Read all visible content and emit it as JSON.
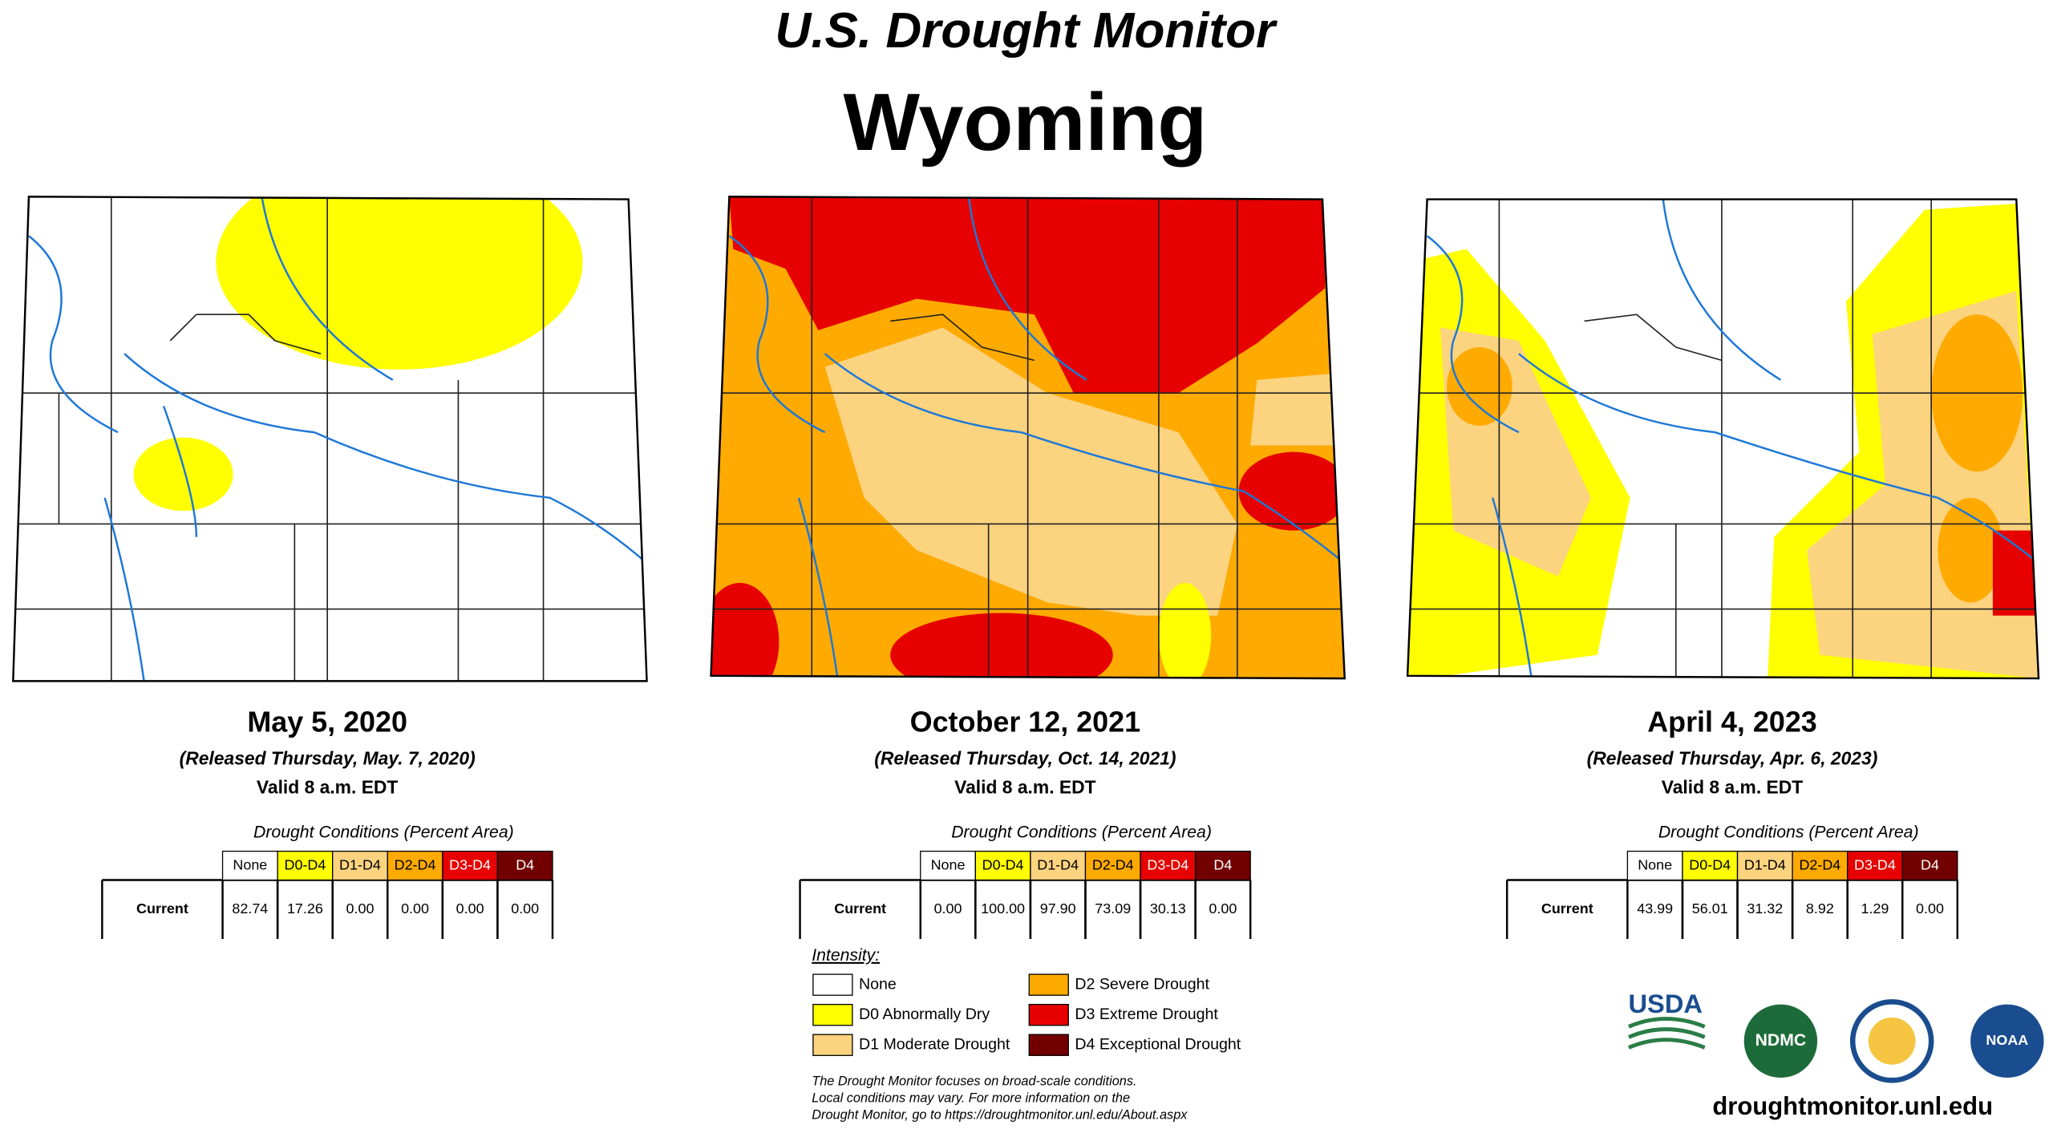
{
  "title": "U.S. Drought Monitor",
  "state": "Wyoming",
  "table": {
    "title": "Drought Conditions (Percent Area)",
    "row_label": "Current",
    "columns": [
      {
        "label": "None",
        "color": "#ffffff",
        "text_color": "#000000"
      },
      {
        "label": "D0-D4",
        "color": "#ffff00",
        "text_color": "#000000"
      },
      {
        "label": "D1-D4",
        "color": "#fcd37f",
        "text_color": "#000000"
      },
      {
        "label": "D2-D4",
        "color": "#ffaa00",
        "text_color": "#000000"
      },
      {
        "label": "D3-D4",
        "color": "#e60000",
        "text_color": "#ffffff"
      },
      {
        "label": "D4",
        "color": "#730000",
        "text_color": "#ffffff"
      }
    ]
  },
  "panels": [
    {
      "date": "May 5, 2020",
      "released": "(Released Thursday, May. 7, 2020)",
      "valid": "Valid 8 a.m. EDT",
      "values": [
        "82.74",
        "17.26",
        "0.00",
        "0.00",
        "0.00",
        "0.00"
      ]
    },
    {
      "date": "October 12, 2021",
      "released": "(Released Thursday, Oct. 14, 2021)",
      "valid": "Valid 8 a.m. EDT",
      "values": [
        "0.00",
        "100.00",
        "97.90",
        "73.09",
        "30.13",
        "0.00"
      ]
    },
    {
      "date": "April 4, 2023",
      "released": "(Released Thursday, Apr. 6, 2023)",
      "valid": "Valid 8 a.m. EDT",
      "values": [
        "43.99",
        "56.01",
        "31.32",
        "8.92",
        "1.29",
        "0.00"
      ]
    }
  ],
  "legend": {
    "title": "Intensity:",
    "items": [
      {
        "label": "None",
        "color": "#ffffff"
      },
      {
        "label": "D0 Abnormally Dry",
        "color": "#ffff00"
      },
      {
        "label": "D1 Moderate Drought",
        "color": "#fcd37f"
      },
      {
        "label": "D2 Severe Drought",
        "color": "#ffaa00"
      },
      {
        "label": "D3 Extreme Drought",
        "color": "#e60000"
      },
      {
        "label": "D4 Exceptional Drought",
        "color": "#730000"
      }
    ]
  },
  "footnote": [
    "The Drought Monitor focuses on broad-scale conditions.",
    "Local conditions may vary. For more information on the",
    "Drought Monitor, go to https://droughtmonitor.unl.edu/About.aspx"
  ],
  "logos": [
    "USDA",
    "NDMC",
    "NOAA"
  ],
  "website": "droughtmonitor.unl.edu"
}
